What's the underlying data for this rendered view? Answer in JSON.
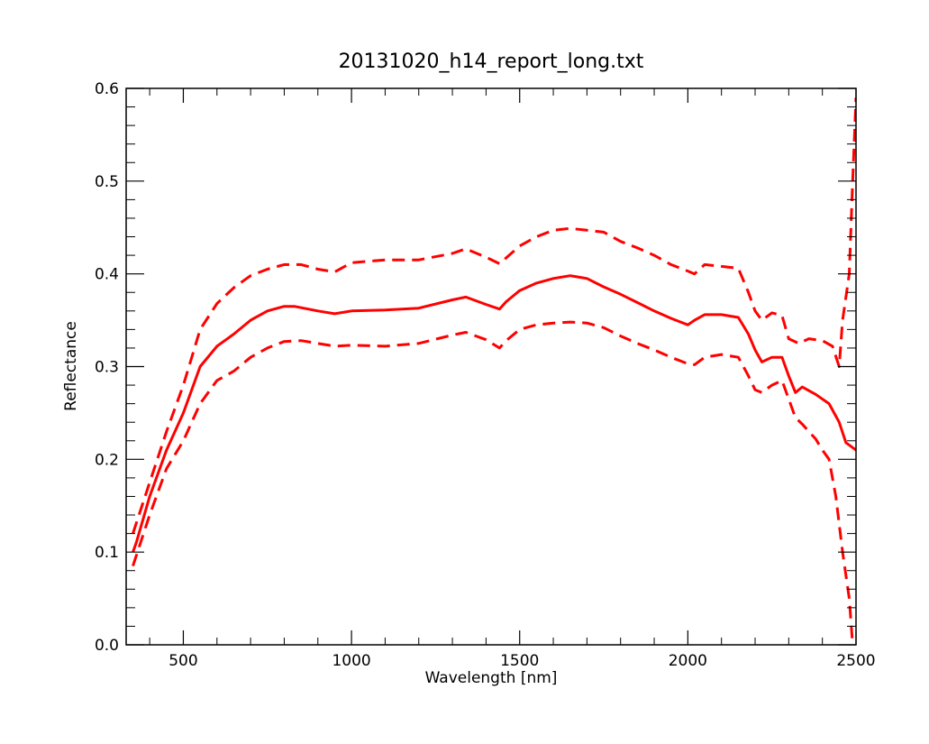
{
  "chart_data": {
    "type": "line",
    "title": "20131020_h14_report_long.txt",
    "xlabel": "Wavelength [nm]",
    "ylabel": "Reflectance",
    "xlim": [
      330,
      2500
    ],
    "ylim": [
      0.0,
      0.6
    ],
    "grid": false,
    "x_ticks": [
      500,
      1000,
      1500,
      2000,
      2500
    ],
    "x_tick_labels": [
      "500",
      "1000",
      "1500",
      "2000",
      "2500"
    ],
    "y_ticks": [
      0.0,
      0.1,
      0.2,
      0.3,
      0.4,
      0.5,
      0.6
    ],
    "y_tick_labels": [
      "0.0",
      "0.1",
      "0.2",
      "0.3",
      "0.4",
      "0.5",
      "0.6"
    ],
    "line_color": "#ff0000",
    "series": [
      {
        "style": "solid",
        "x": [
          350,
          360,
          400,
          450,
          500,
          550,
          600,
          650,
          700,
          750,
          800,
          830,
          900,
          950,
          1000,
          1100,
          1200,
          1300,
          1340,
          1400,
          1440,
          1460,
          1500,
          1550,
          1600,
          1650,
          1700,
          1750,
          1800,
          1850,
          1900,
          1950,
          2000,
          2020,
          2050,
          2100,
          2150,
          2180,
          2200,
          2220,
          2250,
          2280,
          2300,
          2320,
          2340,
          2380,
          2420,
          2450,
          2470,
          2500
        ],
        "y": [
          0.1,
          0.11,
          0.16,
          0.21,
          0.25,
          0.3,
          0.322,
          0.335,
          0.35,
          0.36,
          0.365,
          0.365,
          0.36,
          0.357,
          0.36,
          0.361,
          0.363,
          0.372,
          0.375,
          0.367,
          0.362,
          0.37,
          0.382,
          0.39,
          0.395,
          0.398,
          0.395,
          0.386,
          0.378,
          0.369,
          0.36,
          0.352,
          0.345,
          0.35,
          0.356,
          0.356,
          0.353,
          0.335,
          0.318,
          0.305,
          0.31,
          0.31,
          0.29,
          0.272,
          0.278,
          0.27,
          0.26,
          0.24,
          0.218,
          0.21
        ]
      },
      {
        "style": "dashed",
        "x": [
          350,
          400,
          450,
          500,
          550,
          600,
          650,
          700,
          750,
          800,
          850,
          900,
          950,
          1000,
          1100,
          1200,
          1300,
          1340,
          1400,
          1440,
          1500,
          1550,
          1600,
          1650,
          1700,
          1750,
          1800,
          1850,
          1900,
          1950,
          2000,
          2020,
          2050,
          2100,
          2150,
          2180,
          2200,
          2220,
          2250,
          2280,
          2300,
          2330,
          2360,
          2400,
          2430,
          2450,
          2460,
          2480,
          2490,
          2500
        ],
        "y": [
          0.12,
          0.175,
          0.23,
          0.28,
          0.34,
          0.368,
          0.385,
          0.398,
          0.405,
          0.41,
          0.41,
          0.405,
          0.402,
          0.412,
          0.415,
          0.415,
          0.422,
          0.427,
          0.418,
          0.411,
          0.43,
          0.44,
          0.447,
          0.449,
          0.447,
          0.445,
          0.435,
          0.428,
          0.42,
          0.41,
          0.403,
          0.4,
          0.41,
          0.408,
          0.406,
          0.38,
          0.36,
          0.35,
          0.358,
          0.355,
          0.33,
          0.325,
          0.33,
          0.328,
          0.322,
          0.3,
          0.35,
          0.4,
          0.5,
          0.59
        ]
      },
      {
        "style": "dashed",
        "x": [
          350,
          400,
          450,
          500,
          550,
          600,
          650,
          700,
          750,
          800,
          850,
          900,
          950,
          1000,
          1100,
          1200,
          1300,
          1340,
          1400,
          1440,
          1460,
          1500,
          1550,
          1600,
          1650,
          1700,
          1750,
          1800,
          1850,
          1900,
          1950,
          2000,
          2020,
          2050,
          2100,
          2150,
          2180,
          2200,
          2220,
          2250,
          2280,
          2300,
          2320,
          2340,
          2380,
          2400,
          2420,
          2440,
          2460,
          2480,
          2490
        ],
        "y": [
          0.085,
          0.14,
          0.19,
          0.22,
          0.26,
          0.285,
          0.295,
          0.31,
          0.32,
          0.327,
          0.328,
          0.325,
          0.322,
          0.323,
          0.322,
          0.325,
          0.334,
          0.337,
          0.329,
          0.32,
          0.328,
          0.34,
          0.345,
          0.347,
          0.348,
          0.347,
          0.342,
          0.333,
          0.325,
          0.318,
          0.31,
          0.303,
          0.302,
          0.31,
          0.313,
          0.31,
          0.29,
          0.275,
          0.272,
          0.28,
          0.285,
          0.265,
          0.245,
          0.238,
          0.222,
          0.21,
          0.2,
          0.16,
          0.1,
          0.05,
          0.0
        ]
      }
    ]
  }
}
